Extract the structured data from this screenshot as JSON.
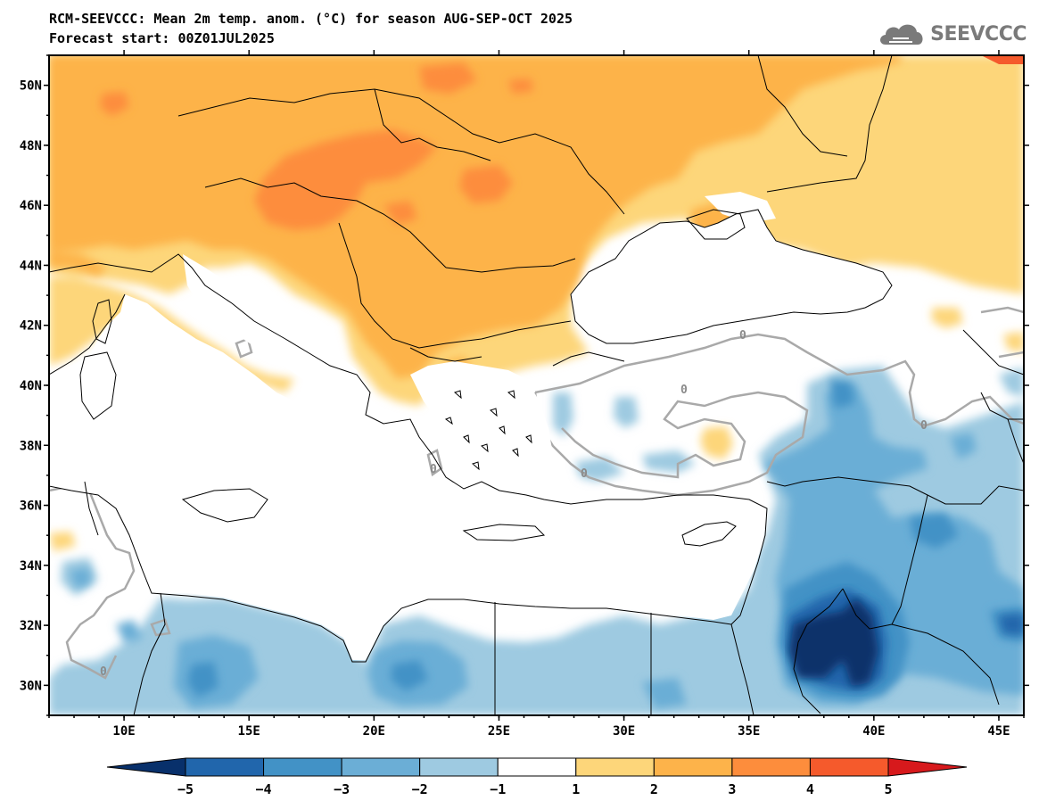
{
  "header": {
    "title_line1": "RCM-SEEVCCC: Mean 2m temp. anom. (°C) for season AUG-SEP-OCT 2025",
    "title_line2": "Forecast start: 00Z01JUL2025"
  },
  "logo": {
    "text": "SEEVCCC",
    "icon": "cloud-icon"
  },
  "map": {
    "lon_range": [
      7,
      46
    ],
    "lat_range": [
      29,
      51
    ],
    "lat_ticks": [
      "50N",
      "48N",
      "46N",
      "44N",
      "42N",
      "40N",
      "38N",
      "36N",
      "34N",
      "32N",
      "30N"
    ],
    "lon_ticks": [
      "10E",
      "15E",
      "20E",
      "25E",
      "30E",
      "35E",
      "40E",
      "45E"
    ],
    "contour_label": "0"
  },
  "colorbar": {
    "labels": [
      "−5",
      "−4",
      "−3",
      "−2",
      "−1",
      "1",
      "2",
      "3",
      "4",
      "5"
    ],
    "colors": [
      "#08306b",
      "#2166ac",
      "#4292c6",
      "#6baed6",
      "#9ecae1",
      "#ffffff",
      "#fdd67a",
      "#fdb34a",
      "#fd8d3c",
      "#f55a2c",
      "#d7191c"
    ]
  }
}
